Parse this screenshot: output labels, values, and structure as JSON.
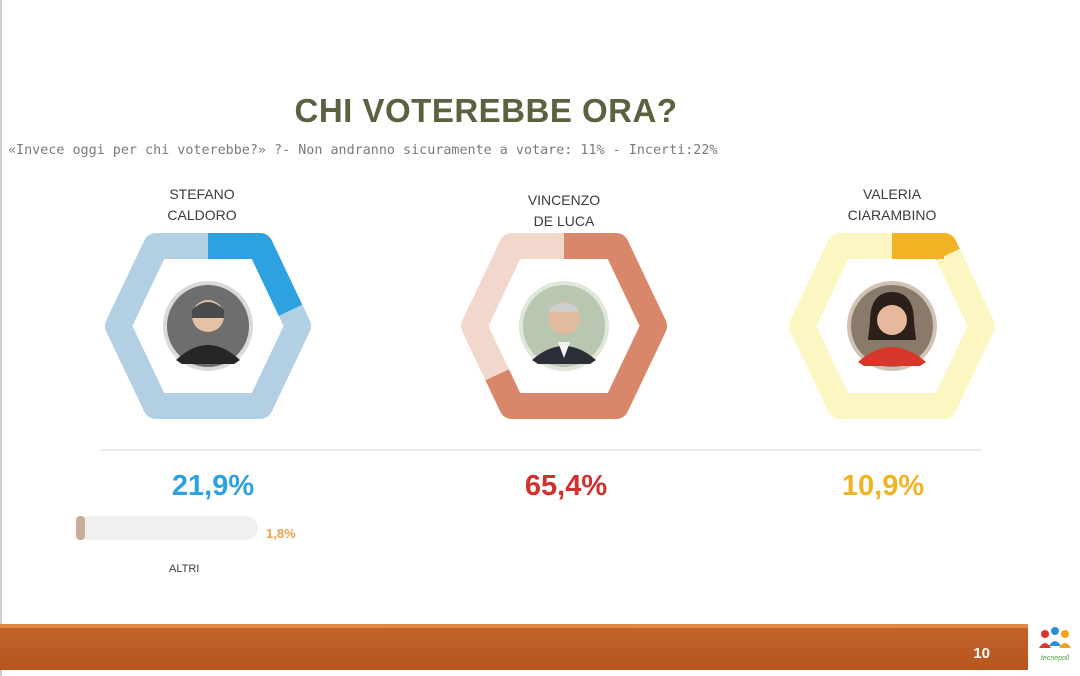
{
  "header": {
    "title": "CHI VOTEREBBE ORA?",
    "subtitle": "«Invece oggi per chi voterebbe?» ?- Non andranno sicuramente a votare: 11%   - Incerti:22%"
  },
  "chart_data": {
    "type": "pie",
    "title": "CHI VOTEREBBE ORA?",
    "subtitle": "«Invece oggi per chi voterebbe?» ?- Non andranno sicuramente a votare: 11%   - Incerti:22%",
    "categories": [
      "STEFANO CALDORO",
      "VINCENZO DE LUCA",
      "VALERIA CIARAMBINO",
      "ALTRI"
    ],
    "values": [
      21.9,
      65.4,
      10.9,
      1.8
    ],
    "value_labels": [
      "21,9%",
      "65,4%",
      "10,9%",
      "1,8%"
    ],
    "candidates": [
      {
        "name_line1": "STEFANO",
        "name_line2": "CALDORO",
        "value": 21.9,
        "label": "21,9%",
        "ring_color": "#b3cfe3",
        "fill_color": "#2ea1e0",
        "text_color": "#2ea1e0"
      },
      {
        "name_line1": "VINCENZO",
        "name_line2": "DE LUCA",
        "value": 65.4,
        "label": "65,4%",
        "ring_color": "#f2d8cc",
        "fill_color": "#d9876a",
        "text_color": "#d0312d"
      },
      {
        "name_line1": "VALERIA",
        "name_line2": "CIARAMBINO",
        "value": 10.9,
        "label": "10,9%",
        "ring_color": "#fbf6c2",
        "fill_color": "#f0b323",
        "text_color": "#f0b323"
      }
    ],
    "others": {
      "label": "ALTRI",
      "value": 1.8,
      "value_label": "1,8%"
    }
  },
  "footer": {
    "page_number": "10",
    "logo_text": "tecnepoll"
  }
}
